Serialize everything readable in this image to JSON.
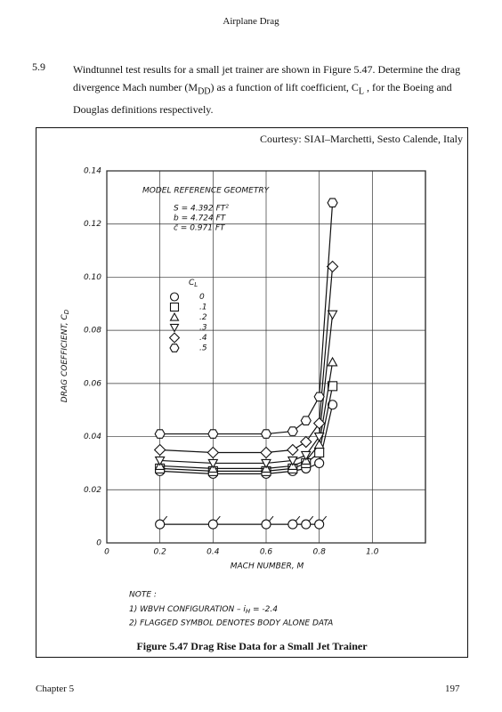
{
  "header": {
    "title": "Airplane Drag"
  },
  "problem": {
    "number": "5.9",
    "text_1": "Windtunnel test results for a small jet trainer are shown in Figure 5.47.  Determine the drag divergence Mach number (M",
    "sub_1": "DD",
    "text_2": ") as a function of lift coefficient, C",
    "sub_2": "L",
    "text_3": " , for the Boeing and Douglas definitions respectively."
  },
  "figure": {
    "courtesy": "Courtesy: SIAI–Marchetti, Sesto Calende, Italy",
    "caption": "Figure 5.47 Drag Rise Data for a Small Jet Trainer",
    "note_title": "NOTE :",
    "note_1": "1)  WBVH  CONFIGURATION  –  i",
    "note_1_sub": "H",
    "note_1_end": "  =  -2.4",
    "note_2": "2)  FLAGGED  SYMBOL  DENOTES  BODY  ALONE  DATA"
  },
  "chart_data": {
    "type": "line",
    "x_label": "MACH  NUMBER, M",
    "y_label": "DRAG  COEFFICIENT, C",
    "y_label_sub": "D",
    "geometry_title": "MODEL   REFERENCE   GEOMETRY",
    "geometry": [
      "S  =  4.392  FT²",
      "b  =  4.724  FT",
      "c̄  =  0.971  FT"
    ],
    "legend_title": "C",
    "legend_title_sub": "L",
    "x": [
      0.2,
      0.4,
      0.6,
      0.7,
      0.75,
      0.8,
      0.85
    ],
    "series": [
      {
        "name": "0",
        "marker": "circle",
        "color": "#111",
        "values": [
          0.027,
          0.026,
          0.026,
          0.027,
          0.028,
          0.03,
          0.052
        ]
      },
      {
        "name": ".1",
        "marker": "square",
        "color": "#111",
        "values": [
          0.028,
          0.027,
          0.027,
          0.028,
          0.03,
          0.034,
          0.059
        ]
      },
      {
        "name": ".2",
        "marker": "triangle-up",
        "color": "#111",
        "values": [
          0.029,
          0.028,
          0.028,
          0.029,
          0.031,
          0.037,
          0.068
        ]
      },
      {
        "name": ".3",
        "marker": "triangle-down",
        "color": "#111",
        "values": [
          0.031,
          0.03,
          0.03,
          0.031,
          0.033,
          0.04,
          0.086
        ]
      },
      {
        "name": ".4",
        "marker": "diamond",
        "color": "#111",
        "values": [
          0.035,
          0.034,
          0.034,
          0.035,
          0.038,
          0.045,
          0.104
        ]
      },
      {
        "name": ".5",
        "marker": "hexagon",
        "color": "#111",
        "values": [
          0.041,
          0.041,
          0.041,
          0.042,
          0.046,
          0.055,
          0.128
        ]
      },
      {
        "marker": "flagged-circle",
        "color": "#111",
        "values": [
          0.007,
          0.007,
          0.007,
          0.007,
          0.007,
          0.007,
          null
        ]
      }
    ],
    "xlim": [
      0,
      1.2
    ],
    "xticks": [
      0,
      0.2,
      0.4,
      0.6,
      0.8,
      {
        "value": 1,
        "label": "1.0"
      }
    ],
    "ylim": [
      0,
      0.14
    ],
    "yticks": [
      0,
      0.02,
      0.04,
      0.06,
      0.08,
      {
        "value": 0.1,
        "label": "0.10"
      },
      0.12,
      0.14
    ],
    "grid": true
  },
  "footer": {
    "chapter": "Chapter 5",
    "page": "197"
  }
}
